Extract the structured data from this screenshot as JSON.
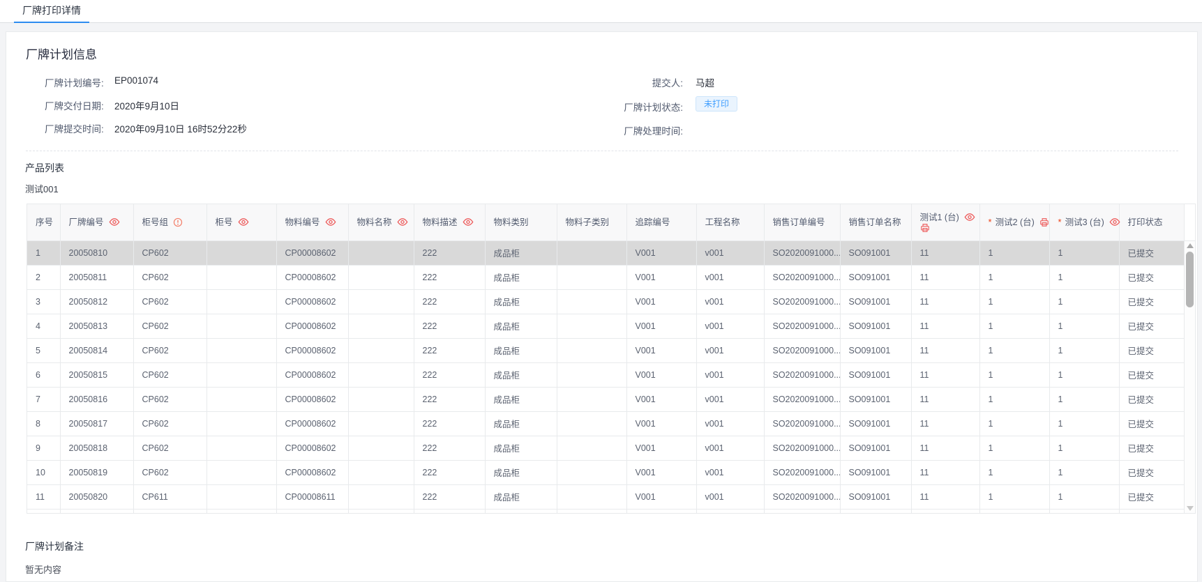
{
  "tab": {
    "label": "厂牌打印详情"
  },
  "info": {
    "title": "厂牌计划信息",
    "left": [
      {
        "label": "厂牌计划编号:",
        "value": "EP001074"
      },
      {
        "label": "厂牌交付日期:",
        "value": "2020年9月10日"
      },
      {
        "label": "厂牌提交时间:",
        "value": "2020年09月10日 16时52分22秒"
      }
    ],
    "right": [
      {
        "label": "提交人:",
        "value": "马超"
      },
      {
        "label": "厂牌计划状态:",
        "value": "未打印"
      },
      {
        "label": "厂牌处理时间:",
        "value": ""
      }
    ]
  },
  "product_section": {
    "title": "产品列表",
    "group": "测试001"
  },
  "remark_section": {
    "title": "厂牌计划备注",
    "empty_text": "暂无内容"
  },
  "colors": {
    "accent_blue": "#2d8cf0",
    "badge_bg": "#eaf4fe",
    "badge_text": "#409eff",
    "badge_border": "#cde5fb",
    "icon_red": "#ed5e5e",
    "required_red": "#ed4014",
    "selected_row": "#d9d9d9",
    "header_bg": "#f8f8f9"
  },
  "table": {
    "columns": [
      {
        "label": "序号",
        "icons": []
      },
      {
        "label": "厂牌编号",
        "icons": [
          "eye"
        ]
      },
      {
        "label": "柜号组",
        "icons": [
          "info"
        ]
      },
      {
        "label": "柜号",
        "icons": [
          "eye"
        ]
      },
      {
        "label": "物料编号",
        "icons": [
          "eye"
        ]
      },
      {
        "label": "物料名称",
        "icons": [
          "eye"
        ]
      },
      {
        "label": "物料描述",
        "icons": [
          "eye"
        ]
      },
      {
        "label": "物料类别",
        "icons": []
      },
      {
        "label": "物料子类别",
        "icons": []
      },
      {
        "label": "追踪编号",
        "icons": []
      },
      {
        "label": "工程名称",
        "icons": []
      },
      {
        "label": "销售订单编号",
        "icons": []
      },
      {
        "label": "销售订单名称",
        "icons": []
      },
      {
        "label": "测试1 (台)",
        "icons": [
          "eye"
        ],
        "icons_line2": [
          "printer"
        ]
      },
      {
        "label": "测试2 (台)",
        "required": true,
        "icons": [
          "printer"
        ]
      },
      {
        "label": "测试3 (台)",
        "required": true,
        "icons": [
          "eye"
        ]
      },
      {
        "label": "打印状态",
        "icons": []
      }
    ],
    "rows": [
      {
        "selected": true,
        "cells": [
          "1",
          "20050810",
          "CP602",
          "",
          "CP00008602",
          "",
          "222",
          "成品柜",
          "",
          "V001",
          "v001",
          "SO2020091000...",
          "SO091001",
          "11",
          "1",
          "1",
          "已提交"
        ]
      },
      {
        "cells": [
          "2",
          "20050811",
          "CP602",
          "",
          "CP00008602",
          "",
          "222",
          "成品柜",
          "",
          "V001",
          "v001",
          "SO2020091000...",
          "SO091001",
          "11",
          "1",
          "1",
          "已提交"
        ]
      },
      {
        "cells": [
          "3",
          "20050812",
          "CP602",
          "",
          "CP00008602",
          "",
          "222",
          "成品柜",
          "",
          "V001",
          "v001",
          "SO2020091000...",
          "SO091001",
          "11",
          "1",
          "1",
          "已提交"
        ]
      },
      {
        "cells": [
          "4",
          "20050813",
          "CP602",
          "",
          "CP00008602",
          "",
          "222",
          "成品柜",
          "",
          "V001",
          "v001",
          "SO2020091000...",
          "SO091001",
          "11",
          "1",
          "1",
          "已提交"
        ]
      },
      {
        "cells": [
          "5",
          "20050814",
          "CP602",
          "",
          "CP00008602",
          "",
          "222",
          "成品柜",
          "",
          "V001",
          "v001",
          "SO2020091000...",
          "SO091001",
          "11",
          "1",
          "1",
          "已提交"
        ]
      },
      {
        "cells": [
          "6",
          "20050815",
          "CP602",
          "",
          "CP00008602",
          "",
          "222",
          "成品柜",
          "",
          "V001",
          "v001",
          "SO2020091000...",
          "SO091001",
          "11",
          "1",
          "1",
          "已提交"
        ]
      },
      {
        "cells": [
          "7",
          "20050816",
          "CP602",
          "",
          "CP00008602",
          "",
          "222",
          "成品柜",
          "",
          "V001",
          "v001",
          "SO2020091000...",
          "SO091001",
          "11",
          "1",
          "1",
          "已提交"
        ]
      },
      {
        "cells": [
          "8",
          "20050817",
          "CP602",
          "",
          "CP00008602",
          "",
          "222",
          "成品柜",
          "",
          "V001",
          "v001",
          "SO2020091000...",
          "SO091001",
          "11",
          "1",
          "1",
          "已提交"
        ]
      },
      {
        "cells": [
          "9",
          "20050818",
          "CP602",
          "",
          "CP00008602",
          "",
          "222",
          "成品柜",
          "",
          "V001",
          "v001",
          "SO2020091000...",
          "SO091001",
          "11",
          "1",
          "1",
          "已提交"
        ]
      },
      {
        "cells": [
          "10",
          "20050819",
          "CP602",
          "",
          "CP00008602",
          "",
          "222",
          "成品柜",
          "",
          "V001",
          "v001",
          "SO2020091000...",
          "SO091001",
          "11",
          "1",
          "1",
          "已提交"
        ]
      },
      {
        "cells": [
          "11",
          "20050820",
          "CP611",
          "",
          "CP00008611",
          "",
          "222",
          "成品柜",
          "",
          "V001",
          "v001",
          "SO2020091000...",
          "SO091001",
          "11",
          "1",
          "1",
          "已提交"
        ]
      }
    ]
  }
}
